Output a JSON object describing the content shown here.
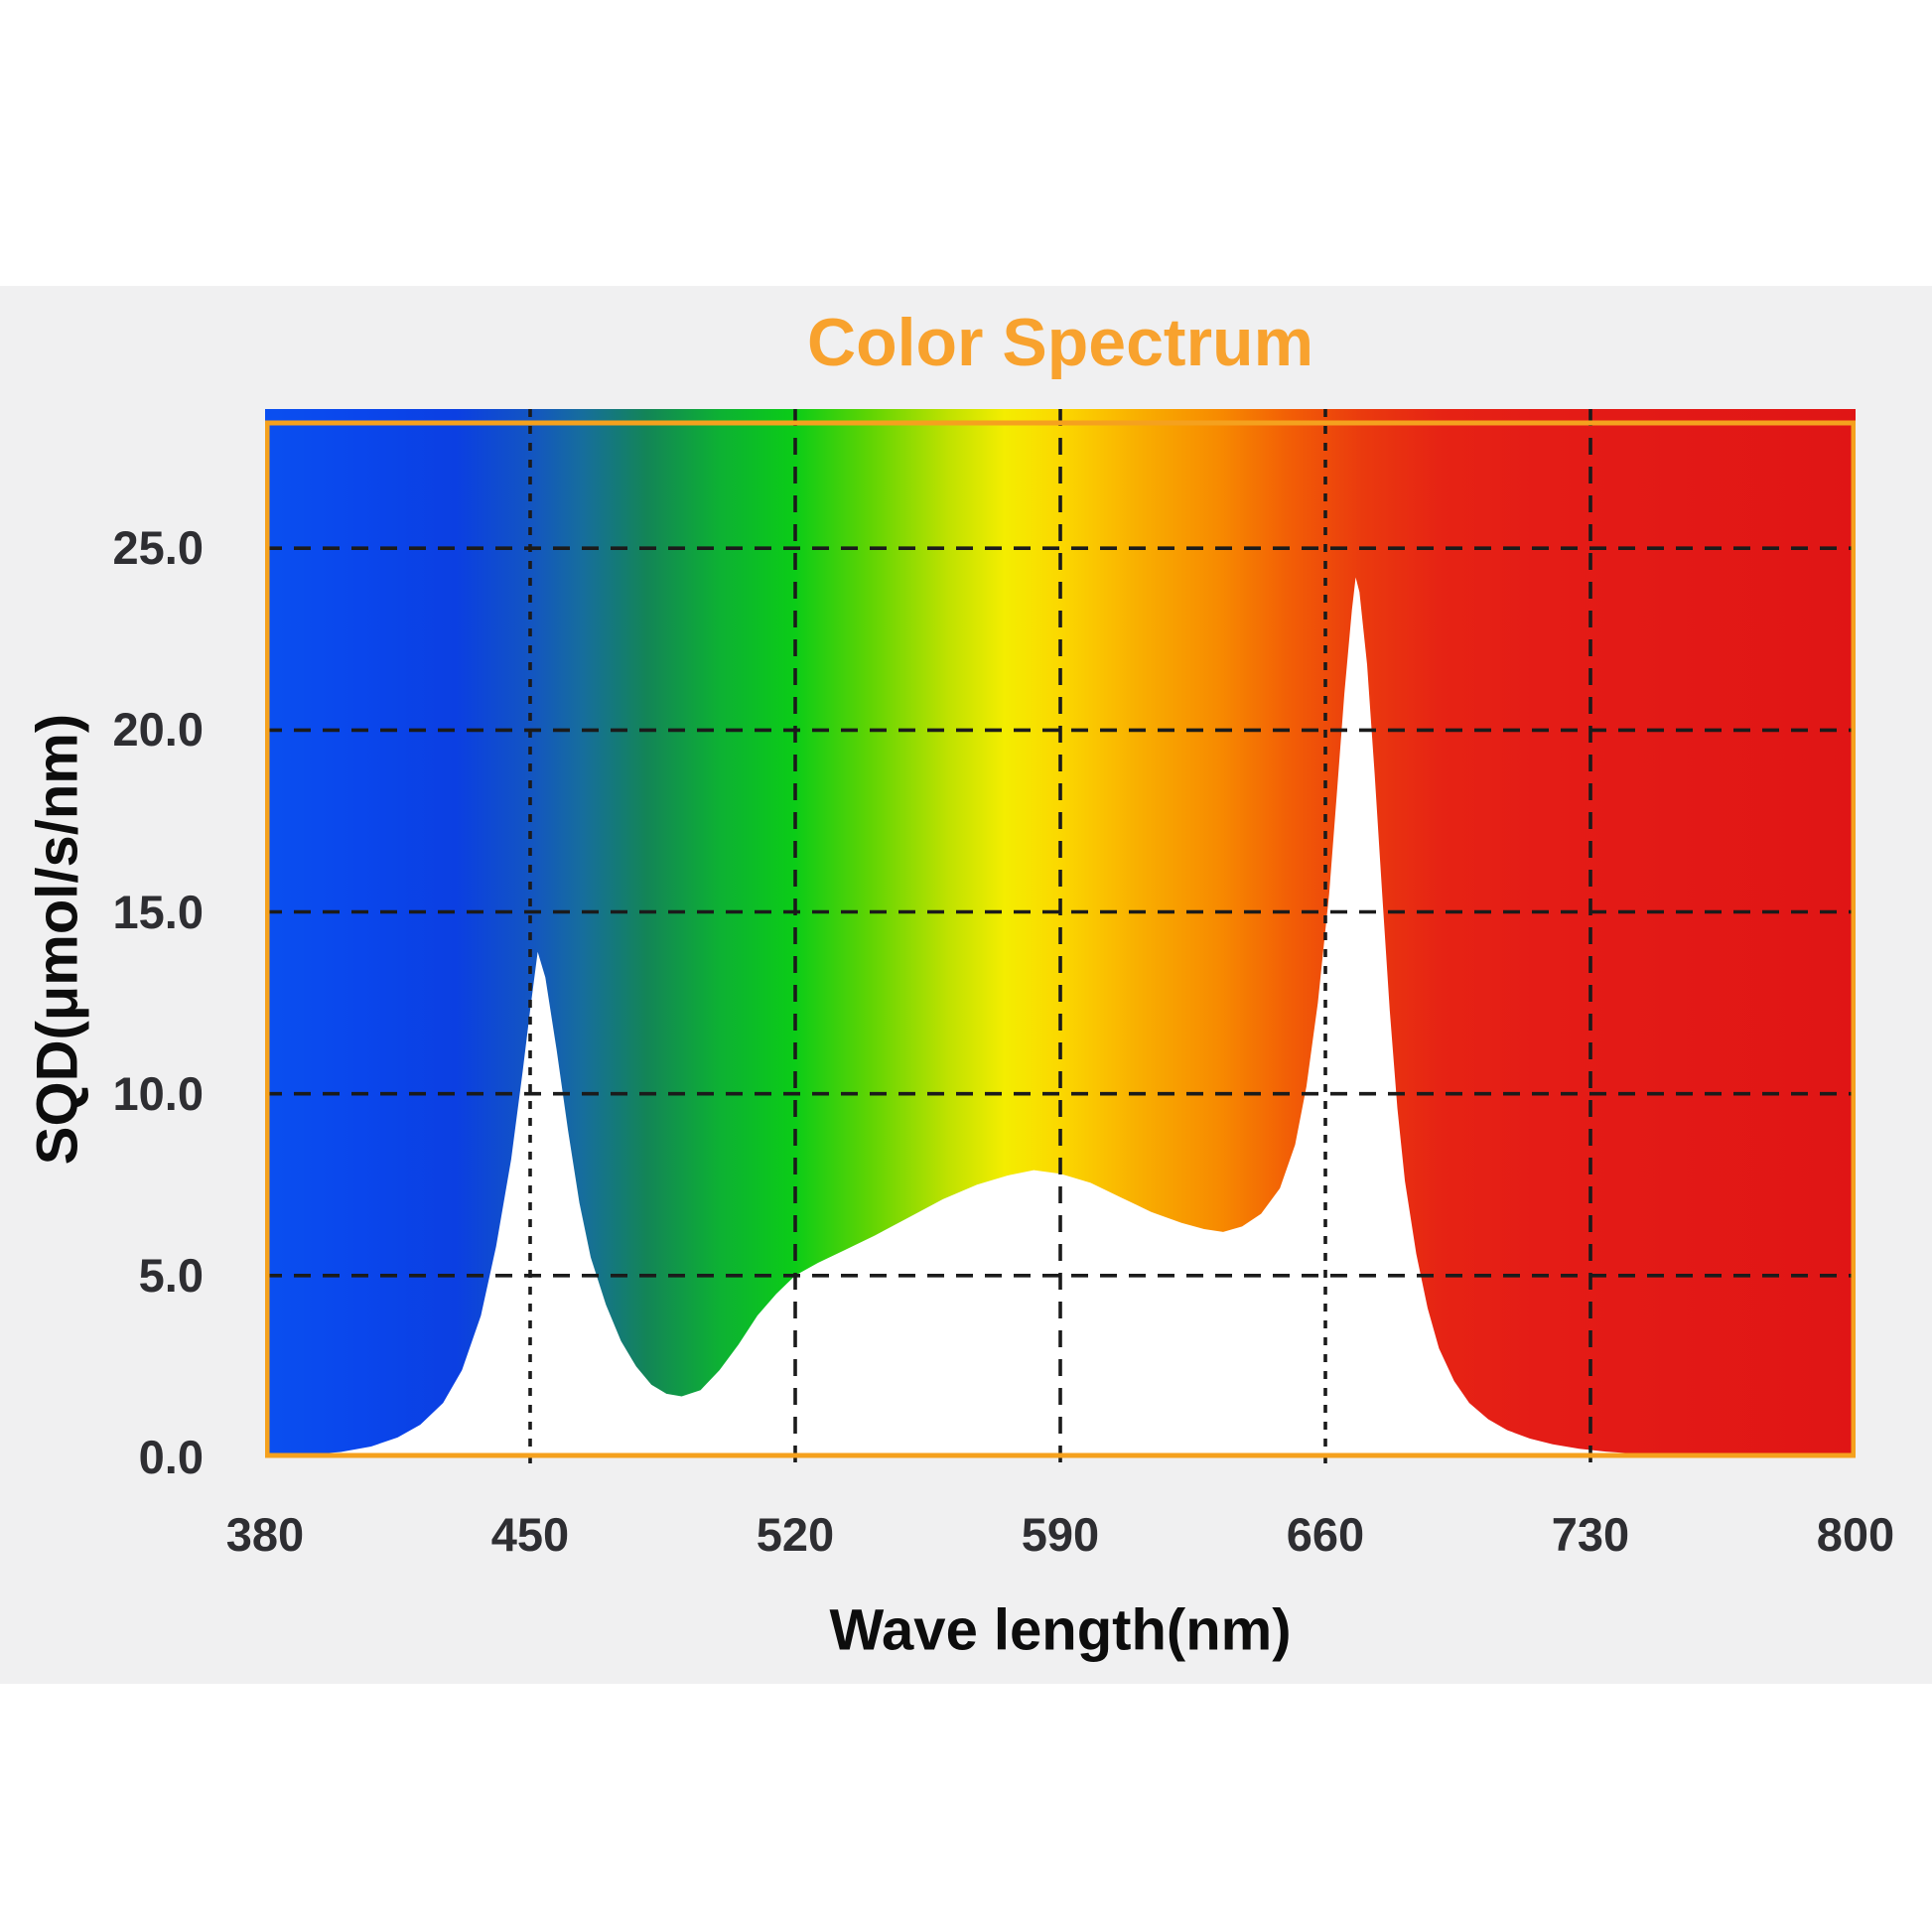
{
  "title": "Color Spectrum",
  "x_axis": {
    "label": "Wave length(nm)",
    "tick_labels": [
      "380",
      "450",
      "520",
      "590",
      "660",
      "730",
      "800"
    ],
    "tick_values": [
      380,
      450,
      520,
      590,
      660,
      730,
      800
    ],
    "min": 380,
    "max": 800
  },
  "y_axis": {
    "label": "SQD(μmol/s/nm)",
    "tick_labels": [
      "0.0",
      "5.0",
      "10.0",
      "15.0",
      "20.0",
      "25.0"
    ],
    "tick_values": [
      0,
      5,
      10,
      15,
      20,
      25
    ],
    "min": 0,
    "max": 28.5
  },
  "colors": {
    "page_bg": "#ffffff",
    "panel_bg": "#f0f0f1",
    "title_text": "#f8a22e",
    "frame": "#f5a11e",
    "grid": "#1b1b1b",
    "tick_text": "#2e2e32",
    "axis_label_text": "#0d0d0d",
    "under_curve_fill": "#ffffff"
  },
  "chart_data": {
    "type": "area",
    "title": "Color Spectrum",
    "xlabel": "Wave length(nm)",
    "ylabel": "SQD(μmol/s/nm)",
    "x_range": [
      380,
      800
    ],
    "y_range": [
      0,
      28.5
    ],
    "grid": "dashed",
    "legend": "none",
    "peaks": [
      {
        "wavelength": 452,
        "value": 13.9
      },
      {
        "wavelength": 583,
        "value": 7.9
      },
      {
        "wavelength": 668,
        "value": 24.2
      }
    ],
    "valleys": [
      {
        "wavelength": 488,
        "value": 1.7
      },
      {
        "wavelength": 632,
        "value": 6.2
      }
    ],
    "points": [
      [
        380,
        0.03
      ],
      [
        390,
        0.06
      ],
      [
        400,
        0.15
      ],
      [
        408,
        0.3
      ],
      [
        415,
        0.55
      ],
      [
        421,
        0.9
      ],
      [
        427,
        1.5
      ],
      [
        432,
        2.4
      ],
      [
        437,
        3.9
      ],
      [
        441,
        5.8
      ],
      [
        445,
        8.2
      ],
      [
        448,
        10.6
      ],
      [
        450,
        12.3
      ],
      [
        452,
        13.9
      ],
      [
        454,
        13.2
      ],
      [
        457,
        11.2
      ],
      [
        460,
        9.0
      ],
      [
        463,
        7.0
      ],
      [
        466,
        5.5
      ],
      [
        470,
        4.2
      ],
      [
        474,
        3.2
      ],
      [
        478,
        2.5
      ],
      [
        482,
        2.0
      ],
      [
        486,
        1.75
      ],
      [
        490,
        1.68
      ],
      [
        495,
        1.85
      ],
      [
        500,
        2.4
      ],
      [
        505,
        3.1
      ],
      [
        510,
        3.9
      ],
      [
        515,
        4.5
      ],
      [
        520,
        5.0
      ],
      [
        526,
        5.35
      ],
      [
        533,
        5.7
      ],
      [
        541,
        6.1
      ],
      [
        550,
        6.6
      ],
      [
        559,
        7.1
      ],
      [
        568,
        7.5
      ],
      [
        576,
        7.75
      ],
      [
        583,
        7.9
      ],
      [
        590,
        7.8
      ],
      [
        598,
        7.55
      ],
      [
        606,
        7.15
      ],
      [
        614,
        6.75
      ],
      [
        622,
        6.45
      ],
      [
        628,
        6.28
      ],
      [
        633,
        6.2
      ],
      [
        638,
        6.35
      ],
      [
        643,
        6.7
      ],
      [
        648,
        7.4
      ],
      [
        652,
        8.6
      ],
      [
        655,
        10.2
      ],
      [
        658,
        12.5
      ],
      [
        661,
        15.5
      ],
      [
        663,
        18.2
      ],
      [
        665,
        21.0
      ],
      [
        667,
        23.3
      ],
      [
        668,
        24.2
      ],
      [
        669,
        23.8
      ],
      [
        671,
        21.8
      ],
      [
        673,
        18.8
      ],
      [
        675,
        15.5
      ],
      [
        677,
        12.3
      ],
      [
        679,
        9.6
      ],
      [
        681,
        7.6
      ],
      [
        684,
        5.6
      ],
      [
        687,
        4.1
      ],
      [
        690,
        3.0
      ],
      [
        694,
        2.1
      ],
      [
        698,
        1.5
      ],
      [
        703,
        1.05
      ],
      [
        708,
        0.75
      ],
      [
        714,
        0.52
      ],
      [
        720,
        0.36
      ],
      [
        727,
        0.24
      ],
      [
        734,
        0.16
      ],
      [
        742,
        0.1
      ],
      [
        752,
        0.06
      ],
      [
        765,
        0.04
      ],
      [
        780,
        0.02
      ],
      [
        800,
        0.01
      ]
    ],
    "spectrum_gradient": [
      {
        "offset": 0.0,
        "color": "#0a4ff0"
      },
      {
        "offset": 0.06,
        "color": "#0a46ec"
      },
      {
        "offset": 0.12,
        "color": "#0b3fe2"
      },
      {
        "offset": 0.167,
        "color": "#1355c2"
      },
      {
        "offset": 0.2,
        "color": "#166e9c"
      },
      {
        "offset": 0.24,
        "color": "#138557"
      },
      {
        "offset": 0.286,
        "color": "#0db133"
      },
      {
        "offset": 0.333,
        "color": "#0bcc17"
      },
      {
        "offset": 0.38,
        "color": "#5fd403"
      },
      {
        "offset": 0.43,
        "color": "#c0e200"
      },
      {
        "offset": 0.465,
        "color": "#f4ed00"
      },
      {
        "offset": 0.5,
        "color": "#fbd800"
      },
      {
        "offset": 0.55,
        "color": "#f9ae00"
      },
      {
        "offset": 0.6,
        "color": "#f78a00"
      },
      {
        "offset": 0.645,
        "color": "#f25d06"
      },
      {
        "offset": 0.69,
        "color": "#ea3a0e"
      },
      {
        "offset": 0.74,
        "color": "#e62314"
      },
      {
        "offset": 0.8,
        "color": "#e41c16"
      },
      {
        "offset": 1.0,
        "color": "#e01515"
      }
    ],
    "dotted_marker_gridlines_nm": [
      450,
      660
    ]
  }
}
